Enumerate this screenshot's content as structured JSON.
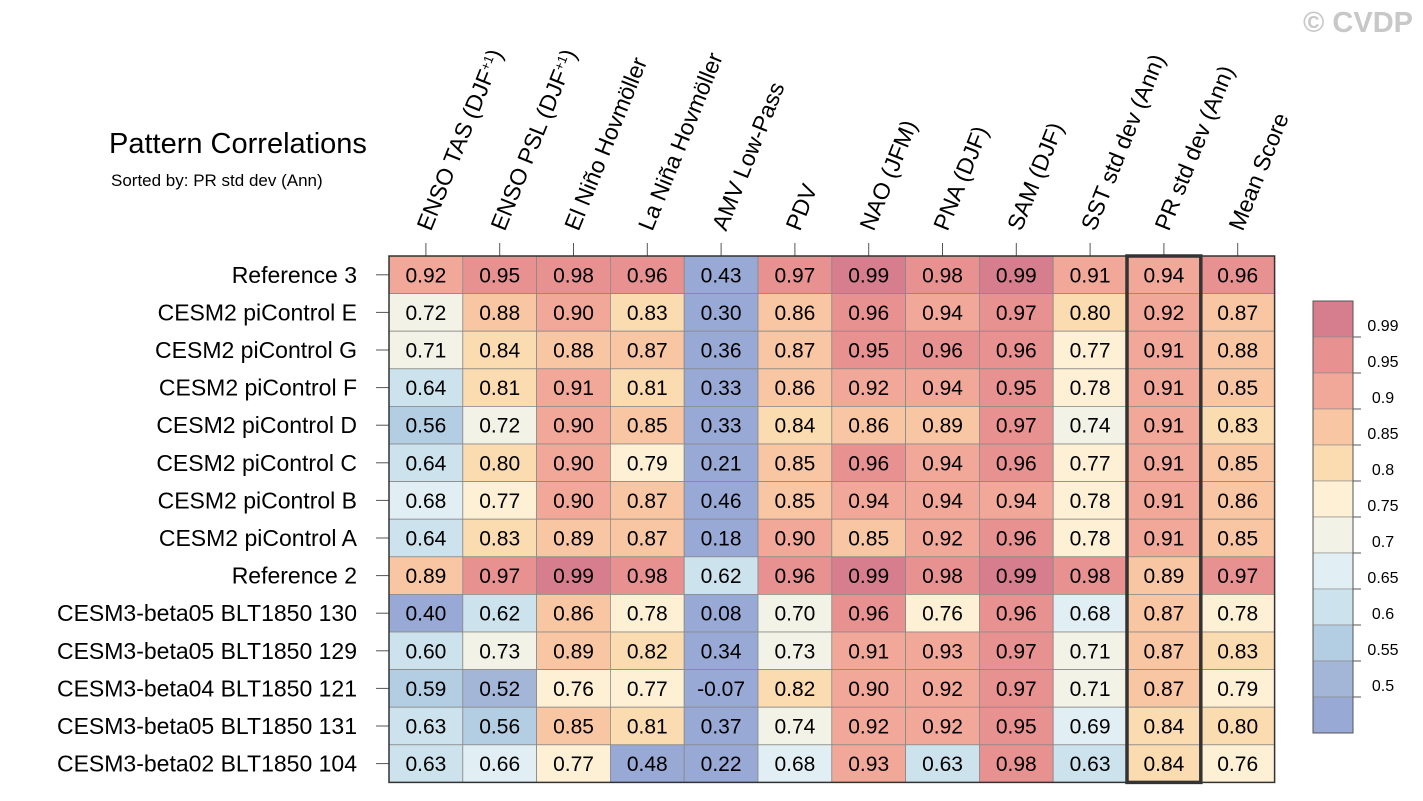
{
  "watermark": "© CVDP",
  "chart_data": {
    "type": "heatmap",
    "title": "Pattern Correlations",
    "subtitle": "Sorted by: PR std dev (Ann)",
    "columns": [
      "ENSO TAS (DJF+1)",
      "ENSO PSL (DJF+1)",
      "El Niño Hovmöller",
      "La Niña Hovmöller",
      "AMV Low-Pass",
      "PDV",
      "NAO (JFM)",
      "PNA (DJF)",
      "SAM (DJF)",
      "SST std dev (Ann)",
      "PR std dev (Ann)",
      "Mean Score"
    ],
    "column_superscript": [
      "+1",
      "+1",
      "",
      "",
      "",
      "",
      "",
      "",
      "",
      "",
      "",
      ""
    ],
    "highlighted_column": "PR std dev (Ann)",
    "rows": [
      "Reference 3",
      "CESM2 piControl E",
      "CESM2 piControl G",
      "CESM2 piControl F",
      "CESM2 piControl D",
      "CESM2 piControl C",
      "CESM2 piControl B",
      "CESM2 piControl A",
      "Reference 2",
      "CESM3-beta05 BLT1850 130",
      "CESM3-beta05 BLT1850 129",
      "CESM3-beta04 BLT1850 121",
      "CESM3-beta05 BLT1850 131",
      "CESM3-beta02 BLT1850 104"
    ],
    "values": [
      [
        "0.92",
        "0.95",
        "0.98",
        "0.96",
        "0.43",
        "0.97",
        "0.99",
        "0.98",
        "0.99",
        "0.91",
        "0.94",
        "0.96"
      ],
      [
        "0.72",
        "0.88",
        "0.90",
        "0.83",
        "0.30",
        "0.86",
        "0.96",
        "0.94",
        "0.97",
        "0.80",
        "0.92",
        "0.87"
      ],
      [
        "0.71",
        "0.84",
        "0.88",
        "0.87",
        "0.36",
        "0.87",
        "0.95",
        "0.96",
        "0.96",
        "0.77",
        "0.91",
        "0.88"
      ],
      [
        "0.64",
        "0.81",
        "0.91",
        "0.81",
        "0.33",
        "0.86",
        "0.92",
        "0.94",
        "0.95",
        "0.78",
        "0.91",
        "0.85"
      ],
      [
        "0.56",
        "0.72",
        "0.90",
        "0.85",
        "0.33",
        "0.84",
        "0.86",
        "0.89",
        "0.97",
        "0.74",
        "0.91",
        "0.83"
      ],
      [
        "0.64",
        "0.80",
        "0.90",
        "0.79",
        "0.21",
        "0.85",
        "0.96",
        "0.94",
        "0.96",
        "0.77",
        "0.91",
        "0.85"
      ],
      [
        "0.68",
        "0.77",
        "0.90",
        "0.87",
        "0.46",
        "0.85",
        "0.94",
        "0.94",
        "0.94",
        "0.78",
        "0.91",
        "0.86"
      ],
      [
        "0.64",
        "0.83",
        "0.89",
        "0.87",
        "0.18",
        "0.90",
        "0.85",
        "0.92",
        "0.96",
        "0.78",
        "0.91",
        "0.85"
      ],
      [
        "0.89",
        "0.97",
        "0.99",
        "0.98",
        "0.62",
        "0.96",
        "0.99",
        "0.98",
        "0.99",
        "0.98",
        "0.89",
        "0.97"
      ],
      [
        "0.40",
        "0.62",
        "0.86",
        "0.78",
        "0.08",
        "0.70",
        "0.96",
        "0.76",
        "0.96",
        "0.68",
        "0.87",
        "0.78"
      ],
      [
        "0.60",
        "0.73",
        "0.89",
        "0.82",
        "0.34",
        "0.73",
        "0.91",
        "0.93",
        "0.97",
        "0.71",
        "0.87",
        "0.83"
      ],
      [
        "0.59",
        "0.52",
        "0.76",
        "0.77",
        "-0.07",
        "0.82",
        "0.90",
        "0.92",
        "0.97",
        "0.71",
        "0.87",
        "0.79"
      ],
      [
        "0.63",
        "0.56",
        "0.85",
        "0.81",
        "0.37",
        "0.74",
        "0.92",
        "0.92",
        "0.95",
        "0.69",
        "0.84",
        "0.80"
      ],
      [
        "0.63",
        "0.66",
        "0.77",
        "0.48",
        "0.22",
        "0.68",
        "0.93",
        "0.63",
        "0.98",
        "0.63",
        "0.84",
        "0.76"
      ]
    ],
    "colorbar": {
      "levels": [
        "0.99",
        "0.95",
        "0.9",
        "0.85",
        "0.8",
        "0.75",
        "0.7",
        "0.65",
        "0.6",
        "0.55",
        "0.5"
      ],
      "colors": [
        "#d67d8e",
        "#e89191",
        "#f2a898",
        "#f8c6a2",
        "#fbdbb0",
        "#fdf0d4",
        "#f3f2e6",
        "#e1eff4",
        "#cce2ec",
        "#b3cde2",
        "#a4b6d8",
        "#97a9d4"
      ]
    }
  }
}
